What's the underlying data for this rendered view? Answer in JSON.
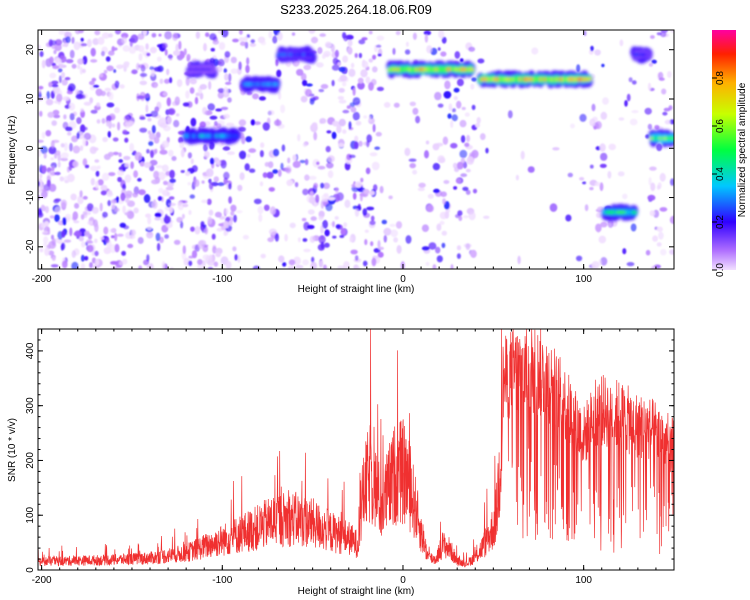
{
  "title": "S233.2025.264.18.06.R09",
  "chart_data": [
    {
      "type": "heatmap",
      "xlabel": "Height of straight line (km)",
      "ylabel": "Frequency (Hz)",
      "xlim": [
        -202,
        150
      ],
      "ylim": [
        -24.5,
        24
      ],
      "xticks": [
        -200,
        -100,
        0,
        100
      ],
      "yticks": [
        -20,
        -10,
        0,
        10,
        20
      ],
      "colorbar": {
        "label": "Normalized spectral amplitude",
        "range": [
          0.0,
          1.0
        ],
        "ticks": [
          "0.0",
          "0.2",
          "0.4",
          "0.6",
          "0.8"
        ],
        "tick_values": [
          0.0,
          0.2,
          0.4,
          0.6,
          0.8
        ]
      },
      "bands": [
        {
          "x": [
            -7,
            38
          ],
          "freq": 16,
          "amp": 0.85
        },
        {
          "x": [
            43,
            103
          ],
          "freq": 14,
          "amp": 0.85
        },
        {
          "x": [
            -120,
            -92
          ],
          "freq": 2.5,
          "amp": 0.4
        },
        {
          "x": [
            -88,
            -70
          ],
          "freq": 13,
          "amp": 0.35
        },
        {
          "x": [
            -68,
            -50
          ],
          "freq": 19,
          "amp": 0.3
        },
        {
          "x": [
            138,
            150
          ],
          "freq": 2,
          "amp": 0.7
        },
        {
          "x": [
            112,
            128
          ],
          "freq": -13,
          "amp": 0.55
        },
        {
          "x": [
            128,
            136
          ],
          "freq": 19,
          "amp": 0.25
        },
        {
          "x": [
            -118,
            -105
          ],
          "freq": 16,
          "amp": 0.2
        }
      ]
    },
    {
      "type": "line",
      "xlabel": "Height of straight line (km)",
      "ylabel": "SNR (10 * v/v)",
      "xlim": [
        -202,
        150
      ],
      "ylim": [
        0,
        440
      ],
      "xticks": [
        -200,
        -100,
        0,
        100
      ],
      "yticks": [
        0,
        100,
        200,
        300,
        400
      ],
      "color": "#f03030",
      "envelope": [
        [
          -202,
          20
        ],
        [
          -180,
          22
        ],
        [
          -160,
          24
        ],
        [
          -140,
          28
        ],
        [
          -120,
          40
        ],
        [
          -110,
          55
        ],
        [
          -100,
          70
        ],
        [
          -90,
          85
        ],
        [
          -80,
          100
        ],
        [
          -70,
          120
        ],
        [
          -60,
          120
        ],
        [
          -50,
          110
        ],
        [
          -40,
          90
        ],
        [
          -30,
          75
        ],
        [
          -25,
          60
        ],
        [
          -22,
          180
        ],
        [
          -18,
          230
        ],
        [
          -12,
          150
        ],
        [
          -8,
          190
        ],
        [
          -4,
          230
        ],
        [
          0,
          230
        ],
        [
          2,
          220
        ],
        [
          6,
          160
        ],
        [
          10,
          90
        ],
        [
          14,
          30
        ],
        [
          18,
          25
        ],
        [
          22,
          60
        ],
        [
          26,
          50
        ],
        [
          30,
          20
        ],
        [
          35,
          15
        ],
        [
          40,
          30
        ],
        [
          45,
          60
        ],
        [
          50,
          100
        ],
        [
          52,
          140
        ],
        [
          55,
          350
        ],
        [
          60,
          370
        ],
        [
          70,
          380
        ],
        [
          80,
          360
        ],
        [
          90,
          310
        ],
        [
          100,
          250
        ],
        [
          108,
          300
        ],
        [
          120,
          290
        ],
        [
          130,
          270
        ],
        [
          140,
          260
        ],
        [
          150,
          230
        ]
      ]
    }
  ]
}
